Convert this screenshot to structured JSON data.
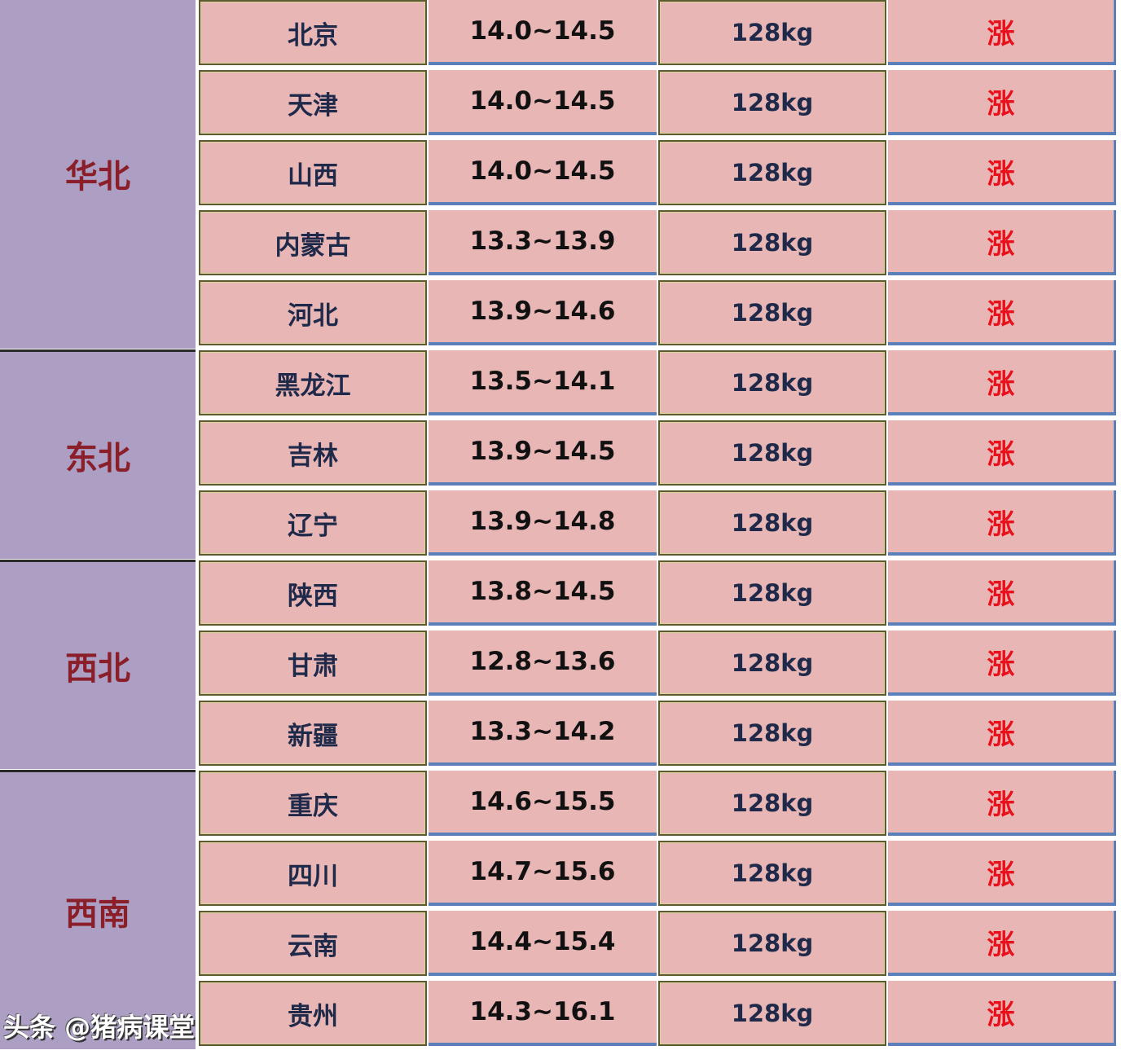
{
  "regions": [
    {
      "label": "华北",
      "rows": 5
    },
    {
      "label": "东北",
      "rows": 3
    },
    {
      "label": "西北",
      "rows": 3
    },
    {
      "label": "西南",
      "rows": 4
    }
  ],
  "rows": [
    {
      "province": "北京",
      "price": "14.0~14.5",
      "weight": "128kg",
      "trend": "涨"
    },
    {
      "province": "天津",
      "price": "14.0~14.5",
      "weight": "128kg",
      "trend": "涨"
    },
    {
      "province": "山西",
      "price": "14.0~14.5",
      "weight": "128kg",
      "trend": "涨"
    },
    {
      "province": "内蒙古",
      "price": "13.3~13.9",
      "weight": "128kg",
      "trend": "涨"
    },
    {
      "province": "河北",
      "price": "13.9~14.6",
      "weight": "128kg",
      "trend": "涨"
    },
    {
      "province": "黑龙江",
      "price": "13.5~14.1",
      "weight": "128kg",
      "trend": "涨"
    },
    {
      "province": "吉林",
      "price": "13.9~14.5",
      "weight": "128kg",
      "trend": "涨"
    },
    {
      "province": "辽宁",
      "price": "13.9~14.8",
      "weight": "128kg",
      "trend": "涨"
    },
    {
      "province": "陕西",
      "price": "13.8~14.5",
      "weight": "128kg",
      "trend": "涨"
    },
    {
      "province": "甘肃",
      "price": "12.8~13.6",
      "weight": "128kg",
      "trend": "涨"
    },
    {
      "province": "新疆",
      "price": "13.3~14.2",
      "weight": "128kg",
      "trend": "涨"
    },
    {
      "province": "重庆",
      "price": "14.6~15.5",
      "weight": "128kg",
      "trend": "涨"
    },
    {
      "province": "四川",
      "price": "14.7~15.6",
      "weight": "128kg",
      "trend": "涨"
    },
    {
      "province": "云南",
      "price": "14.4~15.4",
      "weight": "128kg",
      "trend": "涨"
    },
    {
      "province": "贵州",
      "price": "14.3~16.1",
      "weight": "128kg",
      "trend": "涨"
    }
  ],
  "watermark": "头条 @猪病课堂",
  "colors": {
    "region_bg": "#ad9fc4",
    "cell_bg": "#e8b6b5",
    "region_text": "#8a1f2a",
    "trend_up": "#e8101a",
    "border_blue": "#5b7fb8"
  }
}
